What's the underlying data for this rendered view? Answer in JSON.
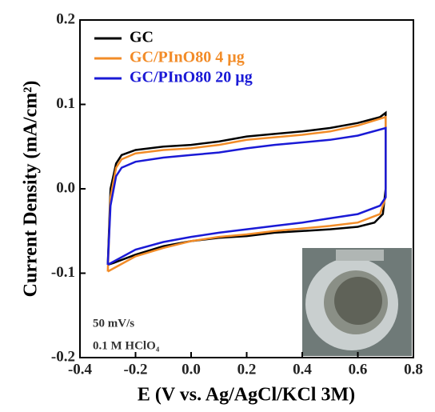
{
  "chart_data": {
    "type": "line",
    "x_label": "E (V vs. Ag/AgCl/KCl 3M)",
    "y_label": "Current Density (mA/cm²)",
    "xlim": [
      -0.4,
      0.8
    ],
    "xticks": [
      -0.4,
      -0.2,
      {
        "value": 0,
        "label": "0.0"
      },
      0.2,
      0.4,
      0.6,
      0.8
    ],
    "ylim": [
      -0.2,
      0.2
    ],
    "yticks": [
      -0.2,
      -0.1,
      {
        "value": 0,
        "label": "0.0"
      },
      0.1,
      0.2
    ],
    "annotations": [
      "50 mV/s",
      "0.1 M HClO₄"
    ],
    "series": [
      {
        "name": "GC",
        "color": "#000000",
        "x": [
          -0.3,
          -0.29,
          -0.27,
          -0.25,
          -0.2,
          -0.1,
          0,
          0.1,
          0.2,
          0.3,
          0.4,
          0.5,
          0.6,
          0.68,
          0.7,
          0.7,
          0.69,
          0.66,
          0.6,
          0.5,
          0.4,
          0.3,
          0.2,
          0.1,
          0,
          -0.1,
          -0.2,
          -0.28,
          -0.3
        ],
        "values": [
          -0.09,
          0,
          0.03,
          0.04,
          0.046,
          0.05,
          0.052,
          0.056,
          0.062,
          0.065,
          0.068,
          0.072,
          0.078,
          0.085,
          0.09,
          0,
          -0.03,
          -0.04,
          -0.045,
          -0.048,
          -0.05,
          -0.052,
          -0.056,
          -0.058,
          -0.062,
          -0.068,
          -0.078,
          -0.088,
          -0.09
        ]
      },
      {
        "name": "GC/PInO80 4 µg",
        "color": "#f28c28",
        "x": [
          -0.3,
          -0.29,
          -0.27,
          -0.25,
          -0.2,
          -0.1,
          0,
          0.1,
          0.2,
          0.3,
          0.4,
          0.5,
          0.6,
          0.7,
          0.7,
          0.68,
          0.6,
          0.5,
          0.4,
          0.3,
          0.2,
          0.1,
          0,
          -0.1,
          -0.2,
          -0.3
        ],
        "values": [
          -0.098,
          -0.01,
          0.025,
          0.035,
          0.042,
          0.046,
          0.048,
          0.052,
          0.058,
          0.061,
          0.064,
          0.068,
          0.075,
          0.085,
          -0.01,
          -0.03,
          -0.04,
          -0.044,
          -0.047,
          -0.05,
          -0.054,
          -0.057,
          -0.062,
          -0.07,
          -0.08,
          -0.098
        ]
      },
      {
        "name": "GC/PInO80 20 µg",
        "color": "#1a1ad6",
        "x": [
          -0.3,
          -0.29,
          -0.27,
          -0.25,
          -0.2,
          -0.1,
          0,
          0.1,
          0.2,
          0.3,
          0.4,
          0.5,
          0.6,
          0.7,
          0.7,
          0.68,
          0.6,
          0.5,
          0.4,
          0.3,
          0.2,
          0.1,
          0,
          -0.1,
          -0.2,
          -0.3
        ],
        "values": [
          -0.09,
          -0.02,
          0.015,
          0.025,
          0.032,
          0.037,
          0.04,
          0.043,
          0.048,
          0.052,
          0.055,
          0.058,
          0.063,
          0.072,
          -0.01,
          -0.02,
          -0.03,
          -0.035,
          -0.04,
          -0.044,
          -0.048,
          -0.052,
          -0.057,
          -0.063,
          -0.072,
          -0.09
        ]
      }
    ]
  }
}
